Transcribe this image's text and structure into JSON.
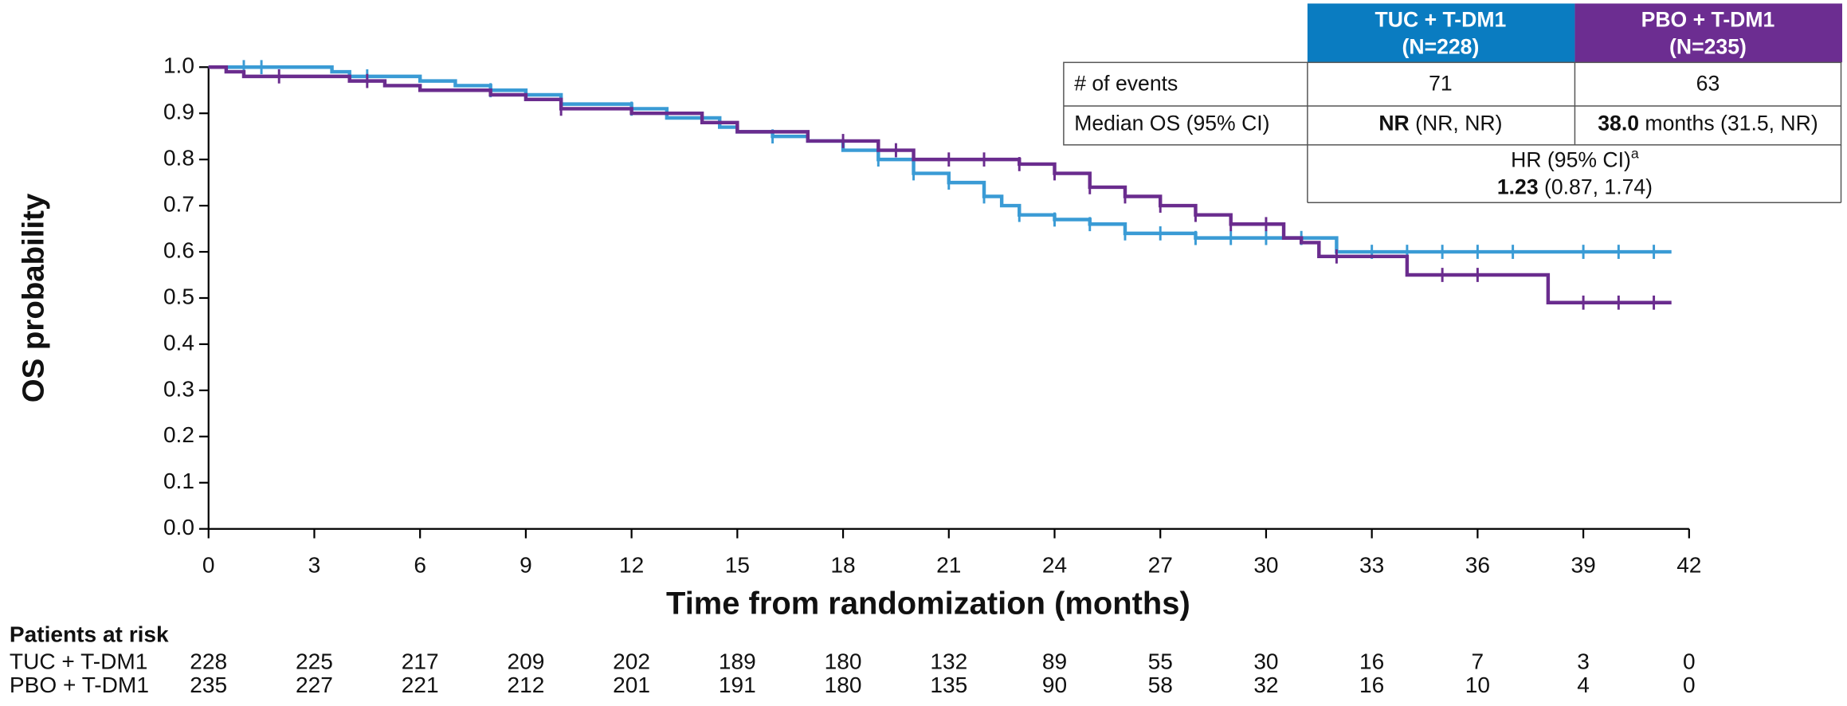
{
  "chart_data": {
    "type": "step",
    "xlabel": "Time from randomization (months)",
    "ylabel": "OS probability",
    "xlim": [
      0,
      42
    ],
    "xticks": [
      0,
      3,
      6,
      9,
      12,
      15,
      18,
      21,
      24,
      27,
      30,
      33,
      36,
      39,
      42
    ],
    "ylim": [
      0,
      1
    ],
    "yticks": [
      {
        "value": 0,
        "label": "0.0"
      },
      0.1,
      0.2,
      0.3,
      0.4,
      0.5,
      0.6,
      0.7,
      0.8,
      0.9,
      {
        "value": 1,
        "label": "1.0"
      }
    ],
    "series": [
      {
        "name": "TUC + T-DM1",
        "color": "#3a9bd5",
        "header_color": "#0a7cc1",
        "x": [
          0,
          3.5,
          4,
          6,
          7,
          8,
          9,
          10,
          12,
          13,
          14.5,
          15,
          16,
          17,
          18,
          19,
          20,
          21,
          22,
          22.5,
          23,
          24,
          25,
          26,
          28,
          32,
          41.5
        ],
        "values": [
          1,
          0.99,
          0.98,
          0.97,
          0.96,
          0.95,
          0.94,
          0.92,
          0.91,
          0.89,
          0.87,
          0.86,
          0.85,
          0.84,
          0.82,
          0.8,
          0.77,
          0.75,
          0.72,
          0.7,
          0.68,
          0.67,
          0.66,
          0.64,
          0.63,
          0.6,
          0.6
        ],
        "censored_x": [
          1,
          1.5,
          4.5,
          8,
          12,
          16,
          19,
          20,
          21,
          22,
          23,
          24,
          25,
          26,
          27,
          28,
          29,
          30,
          31,
          33,
          34,
          35,
          36,
          37,
          39,
          40,
          41
        ]
      },
      {
        "name": "PBO + T-DM1",
        "color": "#6a2c8e",
        "header_color": "#6c2d91",
        "x": [
          0,
          0.5,
          1,
          4,
          5,
          6,
          8,
          9,
          10,
          12,
          14,
          15,
          17,
          19,
          20,
          23,
          24,
          25,
          26,
          27,
          28,
          29,
          30.5,
          31,
          31.5,
          34,
          38,
          41.5
        ],
        "values": [
          1,
          0.99,
          0.98,
          0.97,
          0.96,
          0.95,
          0.94,
          0.93,
          0.91,
          0.9,
          0.88,
          0.86,
          0.84,
          0.82,
          0.8,
          0.79,
          0.77,
          0.74,
          0.72,
          0.7,
          0.68,
          0.66,
          0.63,
          0.62,
          0.59,
          0.55,
          0.49,
          0.49
        ],
        "censored_x": [
          2,
          4.5,
          10,
          18,
          19.5,
          21,
          22,
          23,
          24,
          25,
          26,
          27,
          28,
          29,
          30,
          32,
          35,
          36,
          39,
          40,
          41
        ]
      }
    ]
  },
  "table": {
    "n": [
      "(N=228)",
      "(N=235)"
    ],
    "rows": [
      {
        "label": "# of events",
        "cells": [
          {
            "text": "71"
          },
          {
            "text": "63"
          }
        ]
      },
      {
        "label": "Median OS (95% CI)",
        "cells": [
          {
            "bold": "NR",
            "rest": "(NR, NR)"
          },
          {
            "bold": "38.0",
            "rest": "months (31.5, NR)"
          }
        ]
      }
    ],
    "hr": {
      "label": "HR (95% CI)",
      "sup": "a",
      "bold": "1.23",
      "rest": "(0.87, 1.74)"
    }
  },
  "risk_table": {
    "title": "Patients at risk",
    "rows": [
      [
        228,
        225,
        217,
        209,
        202,
        189,
        180,
        132,
        89,
        55,
        30,
        16,
        7,
        3,
        0
      ],
      [
        235,
        227,
        221,
        212,
        201,
        191,
        180,
        135,
        90,
        58,
        32,
        16,
        10,
        4,
        0
      ]
    ]
  }
}
